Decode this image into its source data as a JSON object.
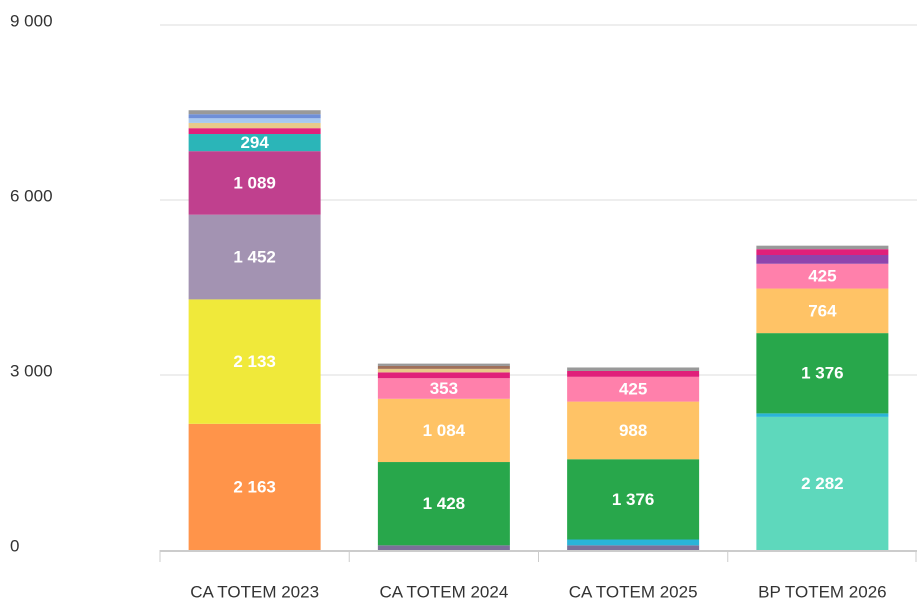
{
  "chart_data": {
    "type": "stacked_bar",
    "categories": [
      "CA TOTEM 2023",
      "CA TOTEM 2024",
      "CA TOTEM 2025",
      "BP TOTEM 2026"
    ],
    "ylim": [
      0,
      9000
    ],
    "yticks": [
      0,
      {
        "value": 3000,
        "label": "3 000"
      },
      {
        "value": 6000,
        "label": "6 000"
      },
      {
        "value": 9000,
        "label": "9 000"
      }
    ],
    "grid": true,
    "series": [
      {
        "color": "#7b7099",
        "values": [
          null,
          80,
          80,
          null
        ]
      },
      {
        "color": "#5ed8bc",
        "values": [
          null,
          null,
          null,
          2282
        ],
        "value_labels": [
          null,
          null,
          null,
          "2 282"
        ]
      },
      {
        "color": "#2ab4d8",
        "values": [
          null,
          null,
          100,
          60
        ]
      },
      {
        "color": "#ff944a",
        "values": [
          2163,
          null,
          null,
          null
        ],
        "value_labels": [
          "2 163",
          null,
          null,
          null
        ]
      },
      {
        "color": "#f0e93a",
        "values": [
          2133,
          null,
          null,
          null
        ],
        "value_labels": [
          "2 133",
          null,
          null,
          null
        ]
      },
      {
        "color": "#a393b2",
        "values": [
          1452,
          null,
          null,
          null
        ],
        "value_labels": [
          "1 452",
          null,
          null,
          null
        ]
      },
      {
        "color": "#c0408e",
        "values": [
          1089,
          null,
          null,
          null
        ],
        "value_labels": [
          "1 089",
          null,
          null,
          null
        ]
      },
      {
        "color": "#2bb5b8",
        "values": [
          294,
          null,
          null,
          null
        ],
        "value_labels": [
          "294",
          null,
          null,
          null
        ]
      },
      {
        "color": "#28a74b",
        "values": [
          null,
          1428,
          1376,
          1376
        ],
        "value_labels": [
          null,
          "1 428",
          "1 376",
          "1 376"
        ]
      },
      {
        "color": "#ffc366",
        "values": [
          null,
          1084,
          988,
          764
        ],
        "value_labels": [
          null,
          "1 084",
          "988",
          "764"
        ]
      },
      {
        "color": "#ff80ab",
        "values": [
          null,
          353,
          425,
          425
        ],
        "value_labels": [
          null,
          "353",
          "425",
          "425"
        ]
      },
      {
        "color": "#8e44ad",
        "values": [
          null,
          null,
          null,
          150
        ]
      },
      {
        "color": "#e0207a",
        "values": [
          100,
          100,
          100,
          100
        ]
      },
      {
        "color": "#e8c98a",
        "values": [
          90,
          60,
          null,
          null
        ]
      },
      {
        "color": "#a8c8f0",
        "values": [
          80,
          null,
          null,
          null
        ]
      },
      {
        "color": "#6f8fd8",
        "values": [
          70,
          null,
          null,
          null
        ]
      },
      {
        "color": "#a0705a",
        "values": [
          null,
          50,
          null,
          null
        ]
      },
      {
        "color": "#999999",
        "values": [
          68,
          40,
          60,
          60
        ]
      }
    ]
  }
}
